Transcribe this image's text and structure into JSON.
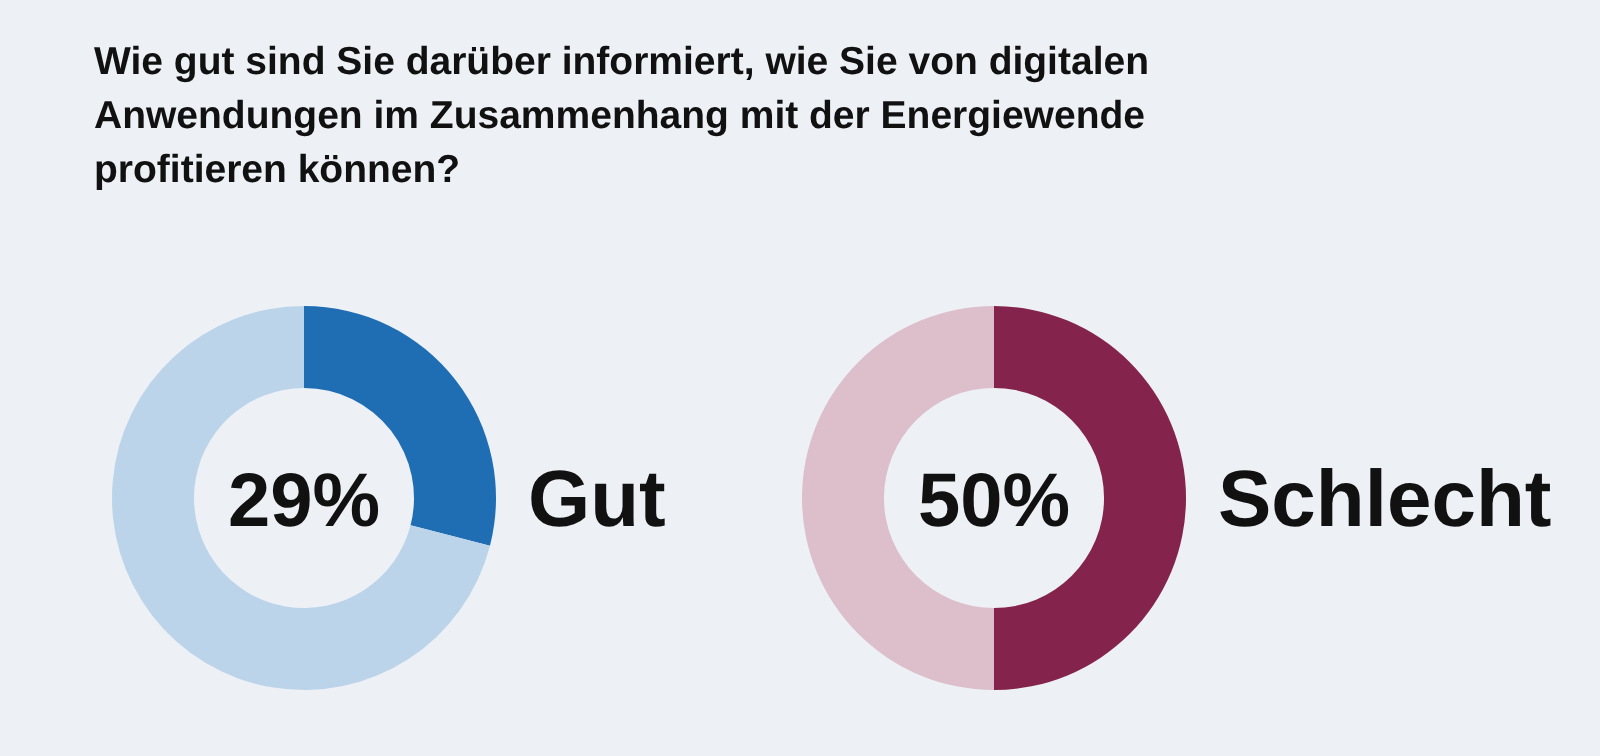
{
  "chart_data": [
    {
      "type": "donut",
      "title": "Wie gut sind Sie darüber informiert, wie Sie von digitalen Anwendungen im Zusammenhang mit der Energiewende profitieren können?",
      "categories": [
        "Gut",
        null
      ],
      "values": [
        29,
        71
      ],
      "colors": [
        "#1f6db3",
        "#bcd4ea"
      ],
      "annotations": [
        "29%"
      ]
    },
    {
      "type": "donut",
      "categories": [
        "Schlecht",
        null
      ],
      "values": [
        50,
        50
      ],
      "colors": [
        "#84234b",
        "#dcbfcb"
      ],
      "annotations": [
        "50%"
      ]
    }
  ]
}
